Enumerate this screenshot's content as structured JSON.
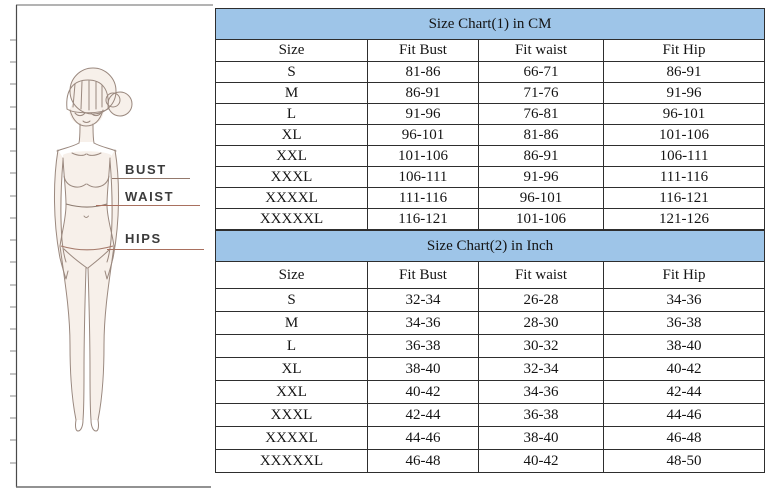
{
  "figure": {
    "labels": [
      "BUST",
      "WAIST",
      "HIPS"
    ]
  },
  "tables": [
    {
      "title": "Size Chart(1) in CM",
      "columns": [
        "Size",
        "Fit Bust",
        "Fit waist",
        "Fit Hip"
      ],
      "rows": [
        [
          "S",
          "81-86",
          "66-71",
          "86-91"
        ],
        [
          "M",
          "86-91",
          "71-76",
          "91-96"
        ],
        [
          "L",
          "91-96",
          "76-81",
          "96-101"
        ],
        [
          "XL",
          "96-101",
          "81-86",
          "101-106"
        ],
        [
          "XXL",
          "101-106",
          "86-91",
          "106-111"
        ],
        [
          "XXXL",
          "106-111",
          "91-96",
          "111-116"
        ],
        [
          "XXXXL",
          "111-116",
          "96-101",
          "116-121"
        ],
        [
          "XXXXXL",
          "116-121",
          "101-106",
          "121-126"
        ]
      ]
    },
    {
      "title": "Size Chart(2) in Inch",
      "columns": [
        "Size",
        "Fit Bust",
        "Fit waist",
        "Fit Hip"
      ],
      "rows": [
        [
          "S",
          "32-34",
          "26-28",
          "34-36"
        ],
        [
          "M",
          "34-36",
          "28-30",
          "36-38"
        ],
        [
          "L",
          "36-38",
          "30-32",
          "38-40"
        ],
        [
          "XL",
          "38-40",
          "32-34",
          "40-42"
        ],
        [
          "XXL",
          "40-42",
          "34-36",
          "42-44"
        ],
        [
          "XXXL",
          "42-44",
          "36-38",
          "44-46"
        ],
        [
          "XXXXL",
          "44-46",
          "38-40",
          "46-48"
        ],
        [
          "XXXXXL",
          "46-48",
          "40-42",
          "48-50"
        ]
      ]
    }
  ],
  "colors": {
    "title_bg": "#9ec5e8",
    "title_text": "#1b2b4d",
    "table_border": "#2e2e2e",
    "cell_text": "#141414",
    "label_text": "#3b3b3b",
    "pointer_line": "#a9705f",
    "sketch_line": "#9a887e",
    "sketch_fill": "#f7f0ea"
  }
}
